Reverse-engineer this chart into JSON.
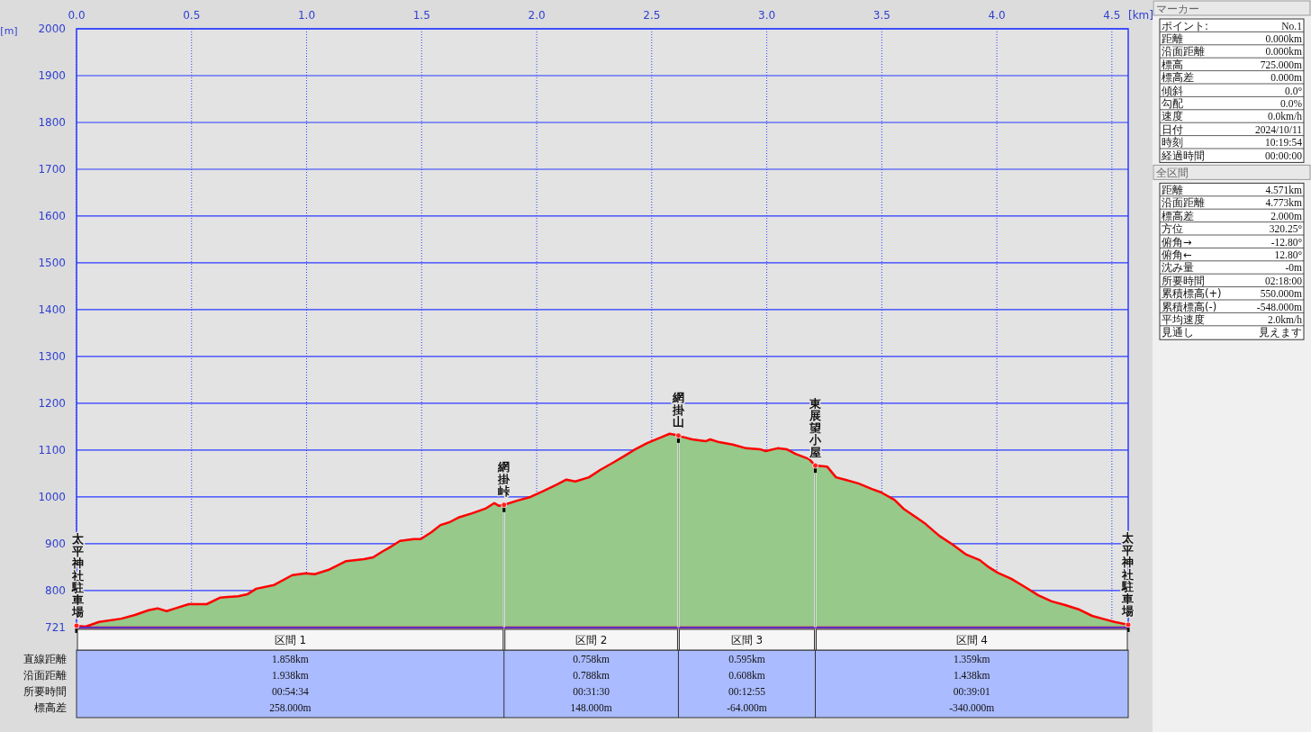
{
  "chart_data": [
    {
      "type": "area",
      "xlabel": "[km]",
      "ylabel": "[m]",
      "xlim": [
        0,
        4.571
      ],
      "ylim": [
        721,
        2000
      ],
      "xticks": [
        {
          "value": 0,
          "label": "0.0"
        },
        {
          "value": 0.5,
          "label": "0.5"
        },
        {
          "value": 1,
          "label": "1.0"
        },
        {
          "value": 1.5,
          "label": "1.5"
        },
        {
          "value": 2,
          "label": "2.0"
        },
        {
          "value": 2.5,
          "label": "2.5"
        },
        {
          "value": 3,
          "label": "3.0"
        },
        {
          "value": 3.5,
          "label": "3.5"
        },
        {
          "value": 4,
          "label": "4.0"
        },
        {
          "value": 4.5,
          "label": "4.5"
        }
      ],
      "yticks": [
        721,
        800,
        900,
        1000,
        1100,
        1200,
        1300,
        1400,
        1500,
        1600,
        1700,
        1800,
        1900,
        2000
      ],
      "grid": true,
      "series": [
        {
          "color": "#ff0000",
          "x": [
            0,
            0.039,
            0.098,
            0.195,
            0.254,
            0.313,
            0.352,
            0.391,
            0.43,
            0.488,
            0.566,
            0.625,
            0.703,
            0.742,
            0.781,
            0.859,
            0.938,
            0.996,
            1.035,
            1.094,
            1.172,
            1.25,
            1.289,
            1.328,
            1.367,
            1.406,
            1.465,
            1.496,
            1.543,
            1.582,
            1.621,
            1.66,
            1.719,
            1.777,
            1.816,
            1.836,
            1.858,
            1.914,
            1.973,
            2.031,
            2.09,
            2.129,
            2.168,
            2.227,
            2.277,
            2.324,
            2.383,
            2.422,
            2.48,
            2.539,
            2.578,
            2.598,
            2.616,
            2.629,
            2.676,
            2.734,
            2.754,
            2.793,
            2.852,
            2.91,
            2.969,
            2.996,
            3.047,
            3.086,
            3.125,
            3.184,
            3.211,
            3.262,
            3.301,
            3.34,
            3.398,
            3.457,
            3.496,
            3.555,
            3.594,
            3.633,
            3.691,
            3.75,
            3.809,
            3.867,
            3.926,
            3.965,
            4.004,
            4.063,
            4.121,
            4.18,
            4.238,
            4.297,
            4.355,
            4.414,
            4.473,
            4.512,
            4.571
          ],
          "values": [
            725,
            723,
            733,
            740,
            748,
            758,
            762,
            756,
            762,
            771,
            771,
            785,
            788,
            792,
            804,
            812,
            833,
            837,
            835,
            844,
            863,
            867,
            871,
            883,
            894,
            906,
            910,
            910,
            925,
            940,
            946,
            956,
            965,
            975,
            987,
            981,
            983,
            992,
            1000,
            1013,
            1027,
            1037,
            1033,
            1042,
            1058,
            1071,
            1088,
            1100,
            1115,
            1127,
            1135,
            1133,
            1131,
            1129,
            1123,
            1119,
            1123,
            1117,
            1112,
            1104,
            1102,
            1098,
            1104,
            1102,
            1092,
            1081,
            1067,
            1065,
            1042,
            1037,
            1029,
            1017,
            1010,
            994,
            975,
            962,
            942,
            917,
            898,
            877,
            865,
            850,
            838,
            825,
            808,
            790,
            777,
            769,
            760,
            746,
            738,
            733,
            727
          ]
        }
      ],
      "annotations": [
        {
          "text": "太平神社駐車場",
          "x": 0,
          "y": 725
        },
        {
          "text": "網掛峠",
          "x": 1.858,
          "y": 983
        },
        {
          "text": "網掛山",
          "x": 2.616,
          "y": 1131
        },
        {
          "text": "東展望小屋",
          "x": 3.211,
          "y": 1067
        },
        {
          "text": "太平神社駐車場",
          "x": 4.571,
          "y": 727
        }
      ]
    },
    {
      "type": "other",
      "annotations": [
        "区間 1",
        "区間 2",
        "区間 3",
        "区間 4",
        "直線距離",
        "1.858km",
        "0.758km",
        "0.595km",
        "1.359km",
        "沿面距離",
        "1.938km",
        "0.788km",
        "0.608km",
        "1.438km",
        "所要時間",
        "00:54:34",
        "00:31:30",
        "00:12:55",
        "00:39:01",
        "標高差",
        "258.000m",
        "148.000m",
        "-64.000m",
        "-340.000m"
      ]
    },
    {
      "type": "other",
      "title": "マーカー",
      "annotations": [
        "ポイント:",
        "No.1",
        "距離",
        "0.000km",
        "沿面距離",
        "0.000km",
        "標高",
        "725.000m",
        "標高差",
        "0.000m",
        "傾斜",
        "0.0°",
        "勾配",
        "0.0%",
        "速度",
        "0.0km/h",
        "日付",
        "2024/10/11",
        "時刻",
        "10:19:54",
        "経過時間",
        "00:00:00"
      ]
    },
    {
      "type": "other",
      "title": "全区間",
      "annotations": [
        "距離",
        "4.571km",
        "沿面距離",
        "4.773km",
        "標高差",
        "2.000m",
        "方位",
        "320.25°",
        "俯角→",
        "-12.80°",
        "俯角←",
        "12.80°",
        "沈み量",
        "-0m",
        "所要時間",
        "02:18:00",
        "累積標高(+)",
        "550.000m",
        "累積標高(-)",
        "-548.000m",
        "平均速度",
        "2.0km/h",
        "見通し",
        "見えます"
      ]
    }
  ]
}
